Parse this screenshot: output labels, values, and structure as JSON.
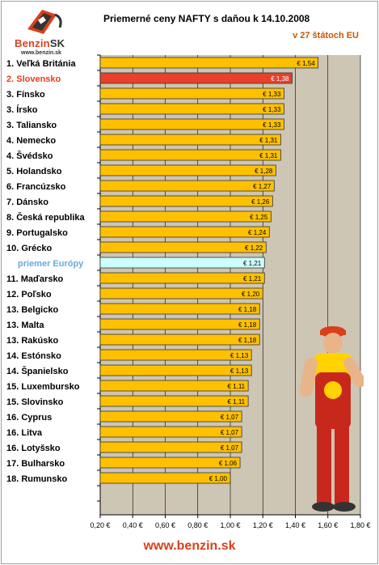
{
  "logo": {
    "brand": "Benzin",
    "brand_suffix": "SK",
    "url": "www.benzin.sk"
  },
  "header": {
    "title": "Priemerné ceny NAFTY s daňou k 14.10.2008",
    "subtitle": "v 27 štátoch EU"
  },
  "footer": {
    "url": "www.benzin.sk"
  },
  "colors": {
    "bar": "#ffc000",
    "highlight": "#e8402a",
    "average": "#ccffff",
    "plot_bg": "#cec6b4",
    "highlight_label": "#e8401a",
    "average_label": "#66aadd"
  },
  "chart_data": {
    "type": "bar",
    "orientation": "horizontal",
    "title": "Priemerné ceny NAFTY s daňou k 14.10.2008",
    "subtitle": "v 27 štátoch EU",
    "categories": [
      "1. Veľká Británia",
      "2. Slovensko",
      "3. Fínsko",
      "3. Írsko",
      "3. Taliansko",
      "4. Nemecko",
      "4. Švédsko",
      "5. Holandsko",
      "6. Francúzsko",
      "7. Dánsko",
      "8. Česká republika",
      "9. Portugalsko",
      "10. Grécko",
      "priemer Európy",
      "11. Maďarsko",
      "12. Poľsko",
      "13. Belgicko",
      "13. Malta",
      "13. Rakúsko",
      "14. Estónsko",
      "14. Španielsko",
      "15. Luxembursko",
      "15. Slovinsko",
      "16. Cyprus",
      "16. Litva",
      "16. Lotyšsko",
      "17. Bulharsko",
      "18. Rumunsko"
    ],
    "values": [
      1.54,
      1.38,
      1.33,
      1.33,
      1.33,
      1.31,
      1.31,
      1.28,
      1.27,
      1.26,
      1.25,
      1.24,
      1.22,
      1.21,
      1.21,
      1.2,
      1.18,
      1.18,
      1.18,
      1.13,
      1.13,
      1.11,
      1.11,
      1.07,
      1.07,
      1.07,
      1.06,
      1.0
    ],
    "value_labels": [
      "€ 1,54",
      "€ 1,38",
      "€ 1,33",
      "€ 1,33",
      "€ 1,33",
      "€ 1,31",
      "€ 1,31",
      "€ 1,28",
      "€ 1,27",
      "€ 1,26",
      "€ 1,25",
      "€ 1,24",
      "€ 1,22",
      "€ 1,21",
      "€ 1,21",
      "€ 1,20",
      "€ 1,18",
      "€ 1,18",
      "€ 1,18",
      "€ 1,13",
      "€ 1,13",
      "€ 1,11",
      "€ 1,11",
      "€ 1,07",
      "€ 1,07",
      "€ 1,07",
      "€ 1,06",
      "€ 1,00"
    ],
    "highlight_index": 1,
    "average_index": 13,
    "xlim": [
      0.2,
      1.8
    ],
    "xticks": [
      0.2,
      0.4,
      0.6,
      0.8,
      1.0,
      1.2,
      1.4,
      1.6,
      1.8
    ],
    "xtick_labels": [
      "0,20 €",
      "0,40 €",
      "0,60 €",
      "0,80 €",
      "1,00 €",
      "1,20 €",
      "1,40 €",
      "1,60 €",
      "1,80 €"
    ],
    "grid": true
  }
}
